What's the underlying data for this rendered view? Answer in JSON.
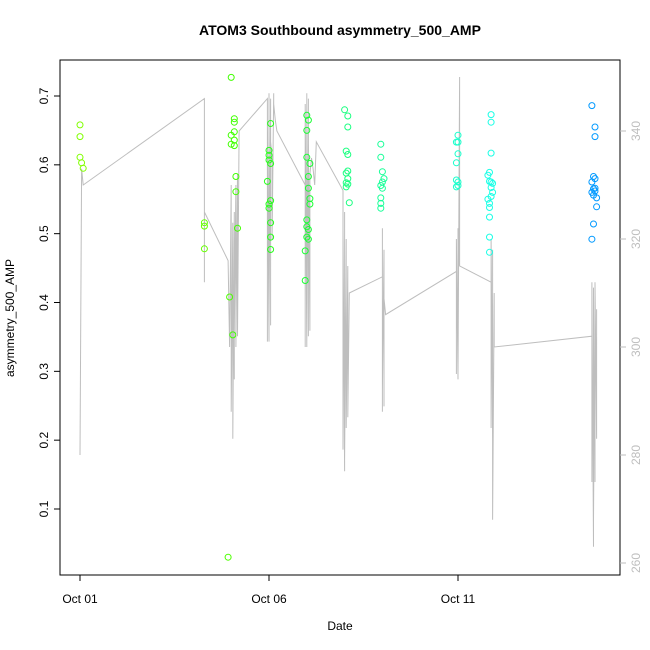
{
  "chart_data": {
    "type": "scatter",
    "title": "ATOM3 Southbound asymmetry_500_AMP",
    "xlabel": "Date",
    "ylabel": "asymmetry_500_AMP",
    "x_axis": {
      "type": "date",
      "range": [
        "2014-10-01T00:00",
        "2014-10-15T00:00"
      ],
      "ticks": [
        {
          "value": "2014-10-01T00:00",
          "label": "Oct 01"
        },
        {
          "value": "2014-10-06T00:00",
          "label": "Oct 06"
        },
        {
          "value": "2014-10-11T00:00",
          "label": "Oct 11"
        }
      ]
    },
    "y_axis": {
      "range": [
        0.01,
        0.75
      ],
      "ticks": [
        0.1,
        0.2,
        0.3,
        0.4,
        0.5,
        0.6,
        0.7
      ],
      "tick_labels": [
        "0.1",
        "0.2",
        "0.3",
        "0.4",
        "0.5",
        "0.6",
        "0.7"
      ]
    },
    "y2_axis": {
      "range": [
        259,
        352
      ],
      "ticks": [
        260,
        280,
        300,
        320,
        340
      ],
      "tick_labels": [
        "260",
        "280",
        "300",
        "320",
        "340"
      ],
      "color": "#bebebe"
    },
    "grid": false,
    "legend": "none",
    "points": [
      {
        "t": "2014-10-01T00:00",
        "y": 0.658,
        "color": "#80ff00"
      },
      {
        "t": "2014-10-01T00:00",
        "y": 0.641,
        "color": "#80ff00"
      },
      {
        "t": "2014-10-01T00:00",
        "y": 0.611,
        "color": "#80ff00"
      },
      {
        "t": "2014-10-01T01:00",
        "y": 0.603,
        "color": "#80ff00"
      },
      {
        "t": "2014-10-01T02:00",
        "y": 0.595,
        "color": "#80ff00"
      },
      {
        "t": "2014-10-04T07:00",
        "y": 0.516,
        "color": "#66ff00"
      },
      {
        "t": "2014-10-04T07:00",
        "y": 0.511,
        "color": "#66ff00"
      },
      {
        "t": "2014-10-04T07:00",
        "y": 0.478,
        "color": "#66ff00"
      },
      {
        "t": "2014-10-04T22:00",
        "y": 0.03,
        "color": "#4dff00"
      },
      {
        "t": "2014-10-04T23:00",
        "y": 0.408,
        "color": "#4dff00"
      },
      {
        "t": "2014-10-05T00:00",
        "y": 0.727,
        "color": "#40ff00"
      },
      {
        "t": "2014-10-05T00:00",
        "y": 0.643,
        "color": "#40ff00"
      },
      {
        "t": "2014-10-05T00:00",
        "y": 0.63,
        "color": "#40ff00"
      },
      {
        "t": "2014-10-05T01:00",
        "y": 0.353,
        "color": "#40ff00"
      },
      {
        "t": "2014-10-05T02:00",
        "y": 0.667,
        "color": "#40ff00"
      },
      {
        "t": "2014-10-05T02:00",
        "y": 0.662,
        "color": "#40ff00"
      },
      {
        "t": "2014-10-05T02:00",
        "y": 0.648,
        "color": "#40ff00"
      },
      {
        "t": "2014-10-05T02:00",
        "y": 0.636,
        "color": "#40ff00"
      },
      {
        "t": "2014-10-05T02:00",
        "y": 0.628,
        "color": "#40ff00"
      },
      {
        "t": "2014-10-05T03:00",
        "y": 0.583,
        "color": "#40ff00"
      },
      {
        "t": "2014-10-05T03:00",
        "y": 0.561,
        "color": "#40ff00"
      },
      {
        "t": "2014-10-05T04:00",
        "y": 0.508,
        "color": "#40ff00"
      },
      {
        "t": "2014-10-05T23:00",
        "y": 0.576,
        "color": "#26ff1a"
      },
      {
        "t": "2014-10-06T00:00",
        "y": 0.621,
        "color": "#26ff1a"
      },
      {
        "t": "2014-10-06T00:00",
        "y": 0.614,
        "color": "#26ff1a"
      },
      {
        "t": "2014-10-06T00:00",
        "y": 0.607,
        "color": "#26ff1a"
      },
      {
        "t": "2014-10-06T00:00",
        "y": 0.543,
        "color": "#26ff1a"
      },
      {
        "t": "2014-10-06T00:00",
        "y": 0.537,
        "color": "#26ff1a"
      },
      {
        "t": "2014-10-06T01:00",
        "y": 0.66,
        "color": "#26ff1a"
      },
      {
        "t": "2014-10-06T01:00",
        "y": 0.602,
        "color": "#26ff1a"
      },
      {
        "t": "2014-10-06T01:00",
        "y": 0.548,
        "color": "#26ff1a"
      },
      {
        "t": "2014-10-06T01:00",
        "y": 0.516,
        "color": "#26ff1a"
      },
      {
        "t": "2014-10-06T01:00",
        "y": 0.495,
        "color": "#26ff1a"
      },
      {
        "t": "2014-10-06T01:00",
        "y": 0.477,
        "color": "#26ff1a"
      },
      {
        "t": "2014-10-06T23:00",
        "y": 0.432,
        "color": "#1aff33"
      },
      {
        "t": "2014-10-06T23:00",
        "y": 0.475,
        "color": "#1aff33"
      },
      {
        "t": "2014-10-07T00:00",
        "y": 0.672,
        "color": "#1aff33"
      },
      {
        "t": "2014-10-07T00:00",
        "y": 0.65,
        "color": "#1aff33"
      },
      {
        "t": "2014-10-07T00:00",
        "y": 0.611,
        "color": "#1aff33"
      },
      {
        "t": "2014-10-07T00:00",
        "y": 0.52,
        "color": "#1aff33"
      },
      {
        "t": "2014-10-07T00:00",
        "y": 0.51,
        "color": "#1aff33"
      },
      {
        "t": "2014-10-07T00:00",
        "y": 0.495,
        "color": "#1aff33"
      },
      {
        "t": "2014-10-07T01:00",
        "y": 0.665,
        "color": "#1aff33"
      },
      {
        "t": "2014-10-07T01:00",
        "y": 0.583,
        "color": "#1aff33"
      },
      {
        "t": "2014-10-07T01:00",
        "y": 0.566,
        "color": "#1aff33"
      },
      {
        "t": "2014-10-07T01:00",
        "y": 0.506,
        "color": "#1aff33"
      },
      {
        "t": "2014-10-07T01:00",
        "y": 0.492,
        "color": "#1aff33"
      },
      {
        "t": "2014-10-07T02:00",
        "y": 0.602,
        "color": "#1aff33"
      },
      {
        "t": "2014-10-07T02:00",
        "y": 0.551,
        "color": "#1aff33"
      },
      {
        "t": "2014-10-07T02:00",
        "y": 0.543,
        "color": "#1aff33"
      },
      {
        "t": "2014-10-08T00:00",
        "y": 0.68,
        "color": "#1aff80"
      },
      {
        "t": "2014-10-08T01:00",
        "y": 0.62,
        "color": "#1aff80"
      },
      {
        "t": "2014-10-08T01:00",
        "y": 0.588,
        "color": "#1aff80"
      },
      {
        "t": "2014-10-08T01:00",
        "y": 0.574,
        "color": "#1aff80"
      },
      {
        "t": "2014-10-08T01:00",
        "y": 0.568,
        "color": "#1aff80"
      },
      {
        "t": "2014-10-08T02:00",
        "y": 0.671,
        "color": "#1aff80"
      },
      {
        "t": "2014-10-08T02:00",
        "y": 0.655,
        "color": "#1aff80"
      },
      {
        "t": "2014-10-08T02:00",
        "y": 0.615,
        "color": "#1aff80"
      },
      {
        "t": "2014-10-08T02:00",
        "y": 0.591,
        "color": "#1aff80"
      },
      {
        "t": "2014-10-08T02:00",
        "y": 0.58,
        "color": "#1aff80"
      },
      {
        "t": "2014-10-08T02:00",
        "y": 0.572,
        "color": "#1aff80"
      },
      {
        "t": "2014-10-08T03:00",
        "y": 0.545,
        "color": "#1aff80"
      },
      {
        "t": "2014-10-08T23:00",
        "y": 0.63,
        "color": "#1aff99"
      },
      {
        "t": "2014-10-08T23:00",
        "y": 0.611,
        "color": "#1aff99"
      },
      {
        "t": "2014-10-08T23:00",
        "y": 0.57,
        "color": "#1aff99"
      },
      {
        "t": "2014-10-08T23:00",
        "y": 0.552,
        "color": "#1aff99"
      },
      {
        "t": "2014-10-08T23:00",
        "y": 0.544,
        "color": "#1aff99"
      },
      {
        "t": "2014-10-08T23:00",
        "y": 0.537,
        "color": "#1aff99"
      },
      {
        "t": "2014-10-09T00:00",
        "y": 0.59,
        "color": "#1aff99"
      },
      {
        "t": "2014-10-09T00:00",
        "y": 0.575,
        "color": "#1aff99"
      },
      {
        "t": "2014-10-09T00:00",
        "y": 0.566,
        "color": "#1aff99"
      },
      {
        "t": "2014-10-09T01:00",
        "y": 0.58,
        "color": "#1aff99"
      },
      {
        "t": "2014-10-10T23:00",
        "y": 0.633,
        "color": "#1affcc"
      },
      {
        "t": "2014-10-10T23:00",
        "y": 0.603,
        "color": "#1affcc"
      },
      {
        "t": "2014-10-10T23:00",
        "y": 0.578,
        "color": "#1affcc"
      },
      {
        "t": "2014-10-10T23:00",
        "y": 0.568,
        "color": "#1affcc"
      },
      {
        "t": "2014-10-11T00:00",
        "y": 0.643,
        "color": "#1affcc"
      },
      {
        "t": "2014-10-11T00:00",
        "y": 0.633,
        "color": "#1affcc"
      },
      {
        "t": "2014-10-11T00:00",
        "y": 0.616,
        "color": "#1affcc"
      },
      {
        "t": "2014-10-11T00:00",
        "y": 0.575,
        "color": "#1affcc"
      },
      {
        "t": "2014-10-11T00:00",
        "y": 0.57,
        "color": "#1affcc"
      },
      {
        "t": "2014-10-11T19:00",
        "y": 0.585,
        "color": "#1affe6"
      },
      {
        "t": "2014-10-11T19:00",
        "y": 0.55,
        "color": "#1affe6"
      },
      {
        "t": "2014-10-11T20:00",
        "y": 0.589,
        "color": "#1affe6"
      },
      {
        "t": "2014-10-11T20:00",
        "y": 0.576,
        "color": "#1affe6"
      },
      {
        "t": "2014-10-11T20:00",
        "y": 0.544,
        "color": "#1affe6"
      },
      {
        "t": "2014-10-11T20:00",
        "y": 0.538,
        "color": "#1affe6"
      },
      {
        "t": "2014-10-11T20:00",
        "y": 0.524,
        "color": "#1affe6"
      },
      {
        "t": "2014-10-11T20:00",
        "y": 0.495,
        "color": "#1affe6"
      },
      {
        "t": "2014-10-11T20:00",
        "y": 0.473,
        "color": "#1affe6"
      },
      {
        "t": "2014-10-11T21:00",
        "y": 0.673,
        "color": "#1affe6"
      },
      {
        "t": "2014-10-11T21:00",
        "y": 0.662,
        "color": "#1affe6"
      },
      {
        "t": "2014-10-11T21:00",
        "y": 0.617,
        "color": "#1affe6"
      },
      {
        "t": "2014-10-11T21:00",
        "y": 0.575,
        "color": "#1affe6"
      },
      {
        "t": "2014-10-11T21:00",
        "y": 0.567,
        "color": "#1affe6"
      },
      {
        "t": "2014-10-11T21:00",
        "y": 0.554,
        "color": "#1affe6"
      },
      {
        "t": "2014-10-11T22:00",
        "y": 0.573,
        "color": "#1affe6"
      },
      {
        "t": "2014-10-11T22:00",
        "y": 0.56,
        "color": "#1affe6"
      },
      {
        "t": "2014-10-14T13:00",
        "y": 0.686,
        "color": "#0099ff"
      },
      {
        "t": "2014-10-14T13:00",
        "y": 0.575,
        "color": "#0099ff"
      },
      {
        "t": "2014-10-14T13:00",
        "y": 0.56,
        "color": "#0099ff"
      },
      {
        "t": "2014-10-14T13:00",
        "y": 0.492,
        "color": "#0099ff"
      },
      {
        "t": "2014-10-14T14:00",
        "y": 0.583,
        "color": "#0099ff"
      },
      {
        "t": "2014-10-14T14:00",
        "y": 0.565,
        "color": "#0099ff"
      },
      {
        "t": "2014-10-14T14:00",
        "y": 0.556,
        "color": "#0099ff"
      },
      {
        "t": "2014-10-14T14:00",
        "y": 0.514,
        "color": "#0099ff"
      },
      {
        "t": "2014-10-14T15:00",
        "y": 0.655,
        "color": "#0099ff"
      },
      {
        "t": "2014-10-14T15:00",
        "y": 0.641,
        "color": "#0099ff"
      },
      {
        "t": "2014-10-14T15:00",
        "y": 0.58,
        "color": "#0099ff"
      },
      {
        "t": "2014-10-14T15:00",
        "y": 0.566,
        "color": "#0099ff"
      },
      {
        "t": "2014-10-14T15:00",
        "y": 0.562,
        "color": "#0099ff"
      },
      {
        "t": "2014-10-14T16:00",
        "y": 0.552,
        "color": "#0099ff"
      },
      {
        "t": "2014-10-14T16:00",
        "y": 0.539,
        "color": "#0099ff"
      }
    ],
    "line_series": {
      "axis": "y2",
      "color": "#bebebe",
      "points": [
        [
          "2014-10-01T00:00",
          280
        ],
        [
          "2014-10-01T01:00",
          333
        ],
        [
          "2014-10-01T02:00",
          330
        ],
        [
          "2014-10-04T07:00",
          346
        ],
        [
          "2014-10-04T07:00",
          315
        ],
        [
          "2014-10-04T07:00",
          312
        ],
        [
          "2014-10-04T07:00",
          325
        ],
        [
          "2014-10-04T22:00",
          316
        ],
        [
          "2014-10-04T23:00",
          300
        ],
        [
          "2014-10-05T00:00",
          330
        ],
        [
          "2014-10-05T00:00",
          288
        ],
        [
          "2014-10-05T01:00",
          323
        ],
        [
          "2014-10-05T01:00",
          283
        ],
        [
          "2014-10-05T02:00",
          325
        ],
        [
          "2014-10-05T02:00",
          294
        ],
        [
          "2014-10-05T02:00",
          303
        ],
        [
          "2014-10-05T03:00",
          330
        ],
        [
          "2014-10-05T03:00",
          300
        ],
        [
          "2014-10-05T04:00",
          332
        ],
        [
          "2014-10-05T04:00",
          302
        ],
        [
          "2014-10-05T05:00",
          340
        ],
        [
          "2014-10-05T23:00",
          346
        ],
        [
          "2014-10-05T23:00",
          301
        ],
        [
          "2014-10-05T23:00",
          342
        ],
        [
          "2014-10-06T00:00",
          301
        ],
        [
          "2014-10-06T00:00",
          347
        ],
        [
          "2014-10-06T00:00",
          305
        ],
        [
          "2014-10-06T01:00",
          346
        ],
        [
          "2014-10-06T01:00",
          304
        ],
        [
          "2014-10-06T01:00",
          338
        ],
        [
          "2014-10-06T02:00",
          335
        ],
        [
          "2014-10-06T02:00",
          320
        ],
        [
          "2014-10-06T03:00",
          347
        ],
        [
          "2014-10-06T03:00",
          345
        ],
        [
          "2014-10-06T04:00",
          342
        ],
        [
          "2014-10-06T05:00",
          340
        ],
        [
          "2014-10-06T23:00",
          330
        ],
        [
          "2014-10-06T23:00",
          300
        ],
        [
          "2014-10-06T23:00",
          345
        ],
        [
          "2014-10-07T00:00",
          300
        ],
        [
          "2014-10-07T00:00",
          347
        ],
        [
          "2014-10-07T00:00",
          301
        ],
        [
          "2014-10-07T01:00",
          346
        ],
        [
          "2014-10-07T01:00",
          302
        ],
        [
          "2014-10-07T01:00",
          338
        ],
        [
          "2014-10-07T02:00",
          303
        ],
        [
          "2014-10-07T02:00",
          332
        ],
        [
          "2014-10-07T03:00",
          335
        ],
        [
          "2014-10-07T04:00",
          333
        ],
        [
          "2014-10-07T05:00",
          330
        ],
        [
          "2014-10-07T06:00",
          338
        ],
        [
          "2014-10-07T23:00",
          329
        ],
        [
          "2014-10-07T23:00",
          281
        ],
        [
          "2014-10-07T23:00",
          322
        ],
        [
          "2014-10-08T00:00",
          277
        ],
        [
          "2014-10-08T00:00",
          325
        ],
        [
          "2014-10-08T00:00",
          279
        ],
        [
          "2014-10-08T01:00",
          320
        ],
        [
          "2014-10-08T01:00",
          285
        ],
        [
          "2014-10-08T02:00",
          315
        ],
        [
          "2014-10-08T02:00",
          287
        ],
        [
          "2014-10-08T03:00",
          310
        ],
        [
          "2014-10-08T03:00",
          310
        ],
        [
          "2014-10-09T00:00",
          313
        ],
        [
          "2014-10-09T00:00",
          290
        ],
        [
          "2014-10-09T00:00",
          322
        ],
        [
          "2014-10-09T00:00",
          288
        ],
        [
          "2014-10-09T00:00",
          320
        ],
        [
          "2014-10-09T00:00",
          292
        ],
        [
          "2014-10-09T01:00",
          318
        ],
        [
          "2014-10-09T01:00",
          289
        ],
        [
          "2014-10-09T01:00",
          307
        ],
        [
          "2014-10-09T01:00",
          309
        ],
        [
          "2014-10-09T02:00",
          306
        ],
        [
          "2014-10-10T23:00",
          314
        ],
        [
          "2014-10-10T23:00",
          295
        ],
        [
          "2014-10-10T23:00",
          320
        ],
        [
          "2014-10-11T00:00",
          294
        ],
        [
          "2014-10-11T00:00",
          322
        ],
        [
          "2014-10-11T00:00",
          296
        ],
        [
          "2014-10-11T00:00",
          318
        ],
        [
          "2014-10-11T00:00",
          295
        ],
        [
          "2014-10-11T01:00",
          350
        ],
        [
          "2014-10-11T01:00",
          315
        ],
        [
          "2014-10-11T21:00",
          312
        ],
        [
          "2014-10-11T21:00",
          285
        ],
        [
          "2014-10-11T21:00",
          320
        ],
        [
          "2014-10-11T22:00",
          283
        ],
        [
          "2014-10-11T22:00",
          318
        ],
        [
          "2014-10-11T22:00",
          268
        ],
        [
          "2014-10-11T23:00",
          310
        ],
        [
          "2014-10-11T23:00",
          300
        ],
        [
          "2014-10-14T13:00",
          302
        ],
        [
          "2014-10-14T13:00",
          275
        ],
        [
          "2014-10-14T13:00",
          312
        ],
        [
          "2014-10-14T14:00",
          263
        ],
        [
          "2014-10-14T14:00",
          311
        ],
        [
          "2014-10-14T14:00",
          268
        ],
        [
          "2014-10-14T15:00",
          310
        ],
        [
          "2014-10-14T15:00",
          275
        ],
        [
          "2014-10-14T15:00",
          312
        ],
        [
          "2014-10-14T16:00",
          283
        ],
        [
          "2014-10-14T16:00",
          307
        ],
        [
          "2014-10-14T16:00",
          305
        ]
      ]
    }
  }
}
